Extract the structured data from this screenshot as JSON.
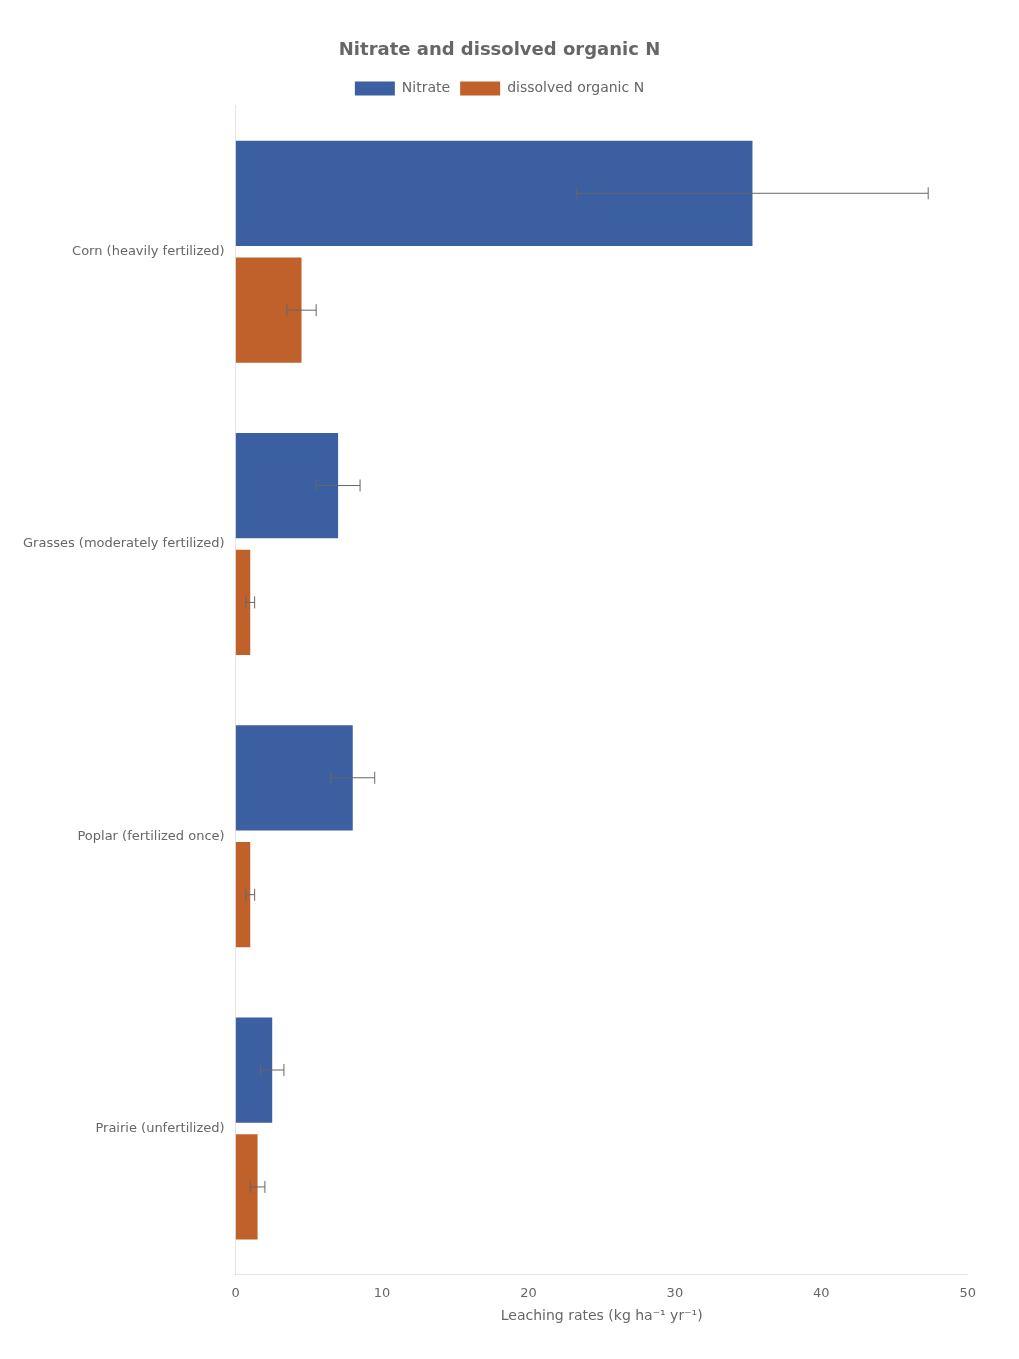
{
  "chart_data": {
    "type": "bar",
    "orientation": "horizontal",
    "title": "Nitrate and dissolved organic N",
    "categories": [
      "Corn (heavily fertilized)",
      "Grasses (moderately fertilized)",
      "Poplar (fertilized once)",
      "Prairie (unfertilized)"
    ],
    "series": [
      {
        "name": "Nitrate",
        "color": "#3B5FA0",
        "values": [
          35.3,
          7.0,
          8.0,
          2.5
        ],
        "errors": [
          12.0,
          1.5,
          1.5,
          0.8
        ]
      },
      {
        "name": "dissolved organic N",
        "color": "#C0602A",
        "values": [
          4.5,
          1.0,
          1.0,
          1.5
        ],
        "errors": [
          1.0,
          0.3,
          0.3,
          0.5
        ]
      }
    ],
    "xlabel": "Leaching rates (kg ha⁻¹ yr⁻¹)",
    "xlim": [
      0,
      50
    ],
    "xticks": [
      0,
      10,
      20,
      30,
      40,
      50
    ],
    "grid": false,
    "legend": "top"
  }
}
